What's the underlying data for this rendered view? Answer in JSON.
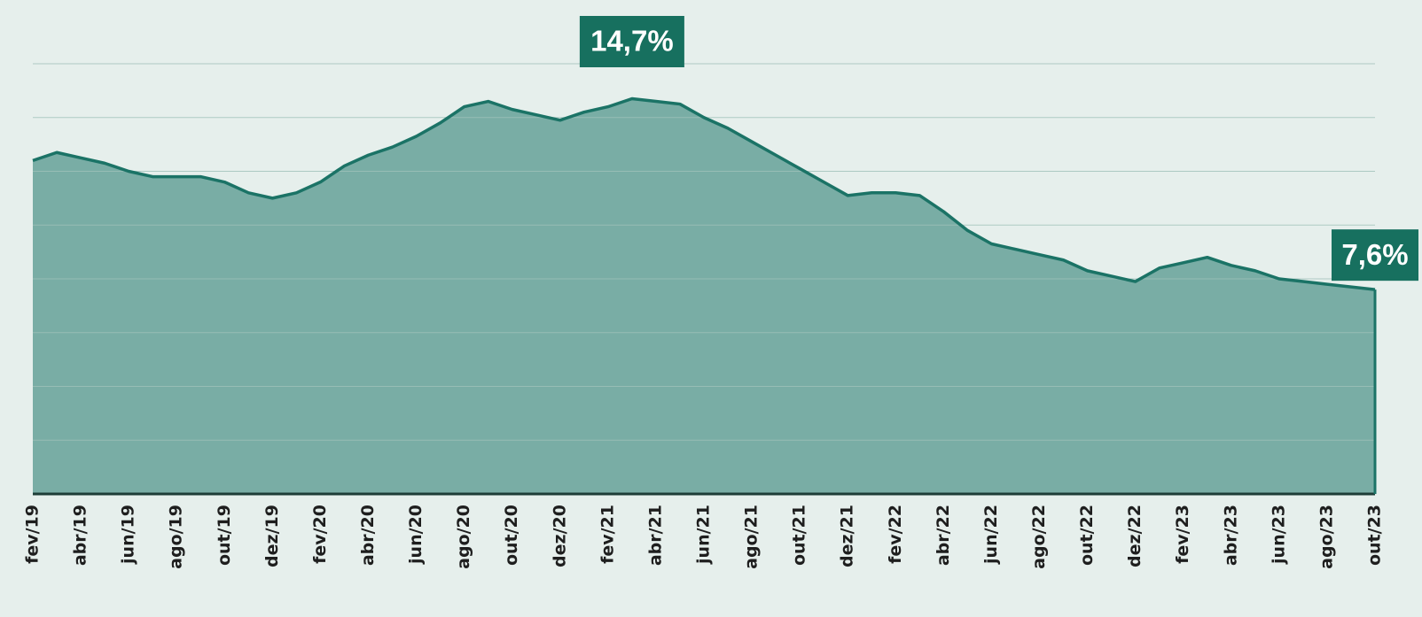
{
  "chart_data": {
    "type": "area",
    "categories": [
      "fev/19",
      null,
      "abr/19",
      null,
      "jun/19",
      null,
      "ago/19",
      null,
      "out/19",
      null,
      "dez/19",
      null,
      "fev/20",
      null,
      "abr/20",
      null,
      "jun/20",
      null,
      "ago/20",
      null,
      "out/20",
      null,
      "dez/20",
      null,
      "fev/21",
      null,
      "abr/21",
      null,
      "jun/21",
      null,
      "ago/21",
      null,
      "out/21",
      null,
      "dez/21",
      null,
      "fev/22",
      null,
      "abr/22",
      null,
      "jun/22",
      null,
      "ago/22",
      null,
      "out/22",
      null,
      "dez/22",
      null,
      "fev/23",
      null,
      "abr/23",
      null,
      "jun/23",
      null,
      "ago/23",
      null,
      "out/23"
    ],
    "values": [
      12.4,
      12.7,
      12.5,
      12.3,
      12.0,
      11.8,
      11.8,
      11.8,
      11.6,
      11.2,
      11.0,
      11.2,
      11.6,
      12.2,
      12.6,
      12.9,
      13.3,
      13.8,
      14.4,
      14.6,
      14.3,
      14.1,
      13.9,
      14.2,
      14.4,
      14.7,
      14.6,
      14.5,
      14.0,
      13.6,
      13.1,
      12.6,
      12.1,
      11.6,
      11.1,
      11.2,
      11.2,
      11.1,
      10.5,
      9.8,
      9.3,
      9.1,
      8.9,
      8.7,
      8.3,
      8.1,
      7.9,
      8.4,
      8.6,
      8.8,
      8.5,
      8.3,
      8.0,
      7.9,
      7.8,
      7.7,
      7.6
    ],
    "value_labels": [
      null,
      null,
      null,
      null,
      null,
      null,
      null,
      null,
      null,
      null,
      null,
      null,
      null,
      null,
      null,
      null,
      null,
      null,
      null,
      null,
      null,
      null,
      null,
      null,
      null,
      "14,7%",
      null,
      null,
      null,
      null,
      null,
      null,
      null,
      null,
      null,
      null,
      null,
      null,
      null,
      null,
      null,
      null,
      null,
      null,
      null,
      null,
      null,
      null,
      null,
      null,
      null,
      null,
      null,
      null,
      null,
      null,
      "7,6%"
    ],
    "color": "#79ada5",
    "line_color": "#1b7366",
    "label_color": "#17705f",
    "ylim": [
      0,
      16
    ],
    "yticks": [
      0,
      2,
      4,
      6,
      8,
      10,
      12,
      14,
      16
    ],
    "grid": true
  }
}
